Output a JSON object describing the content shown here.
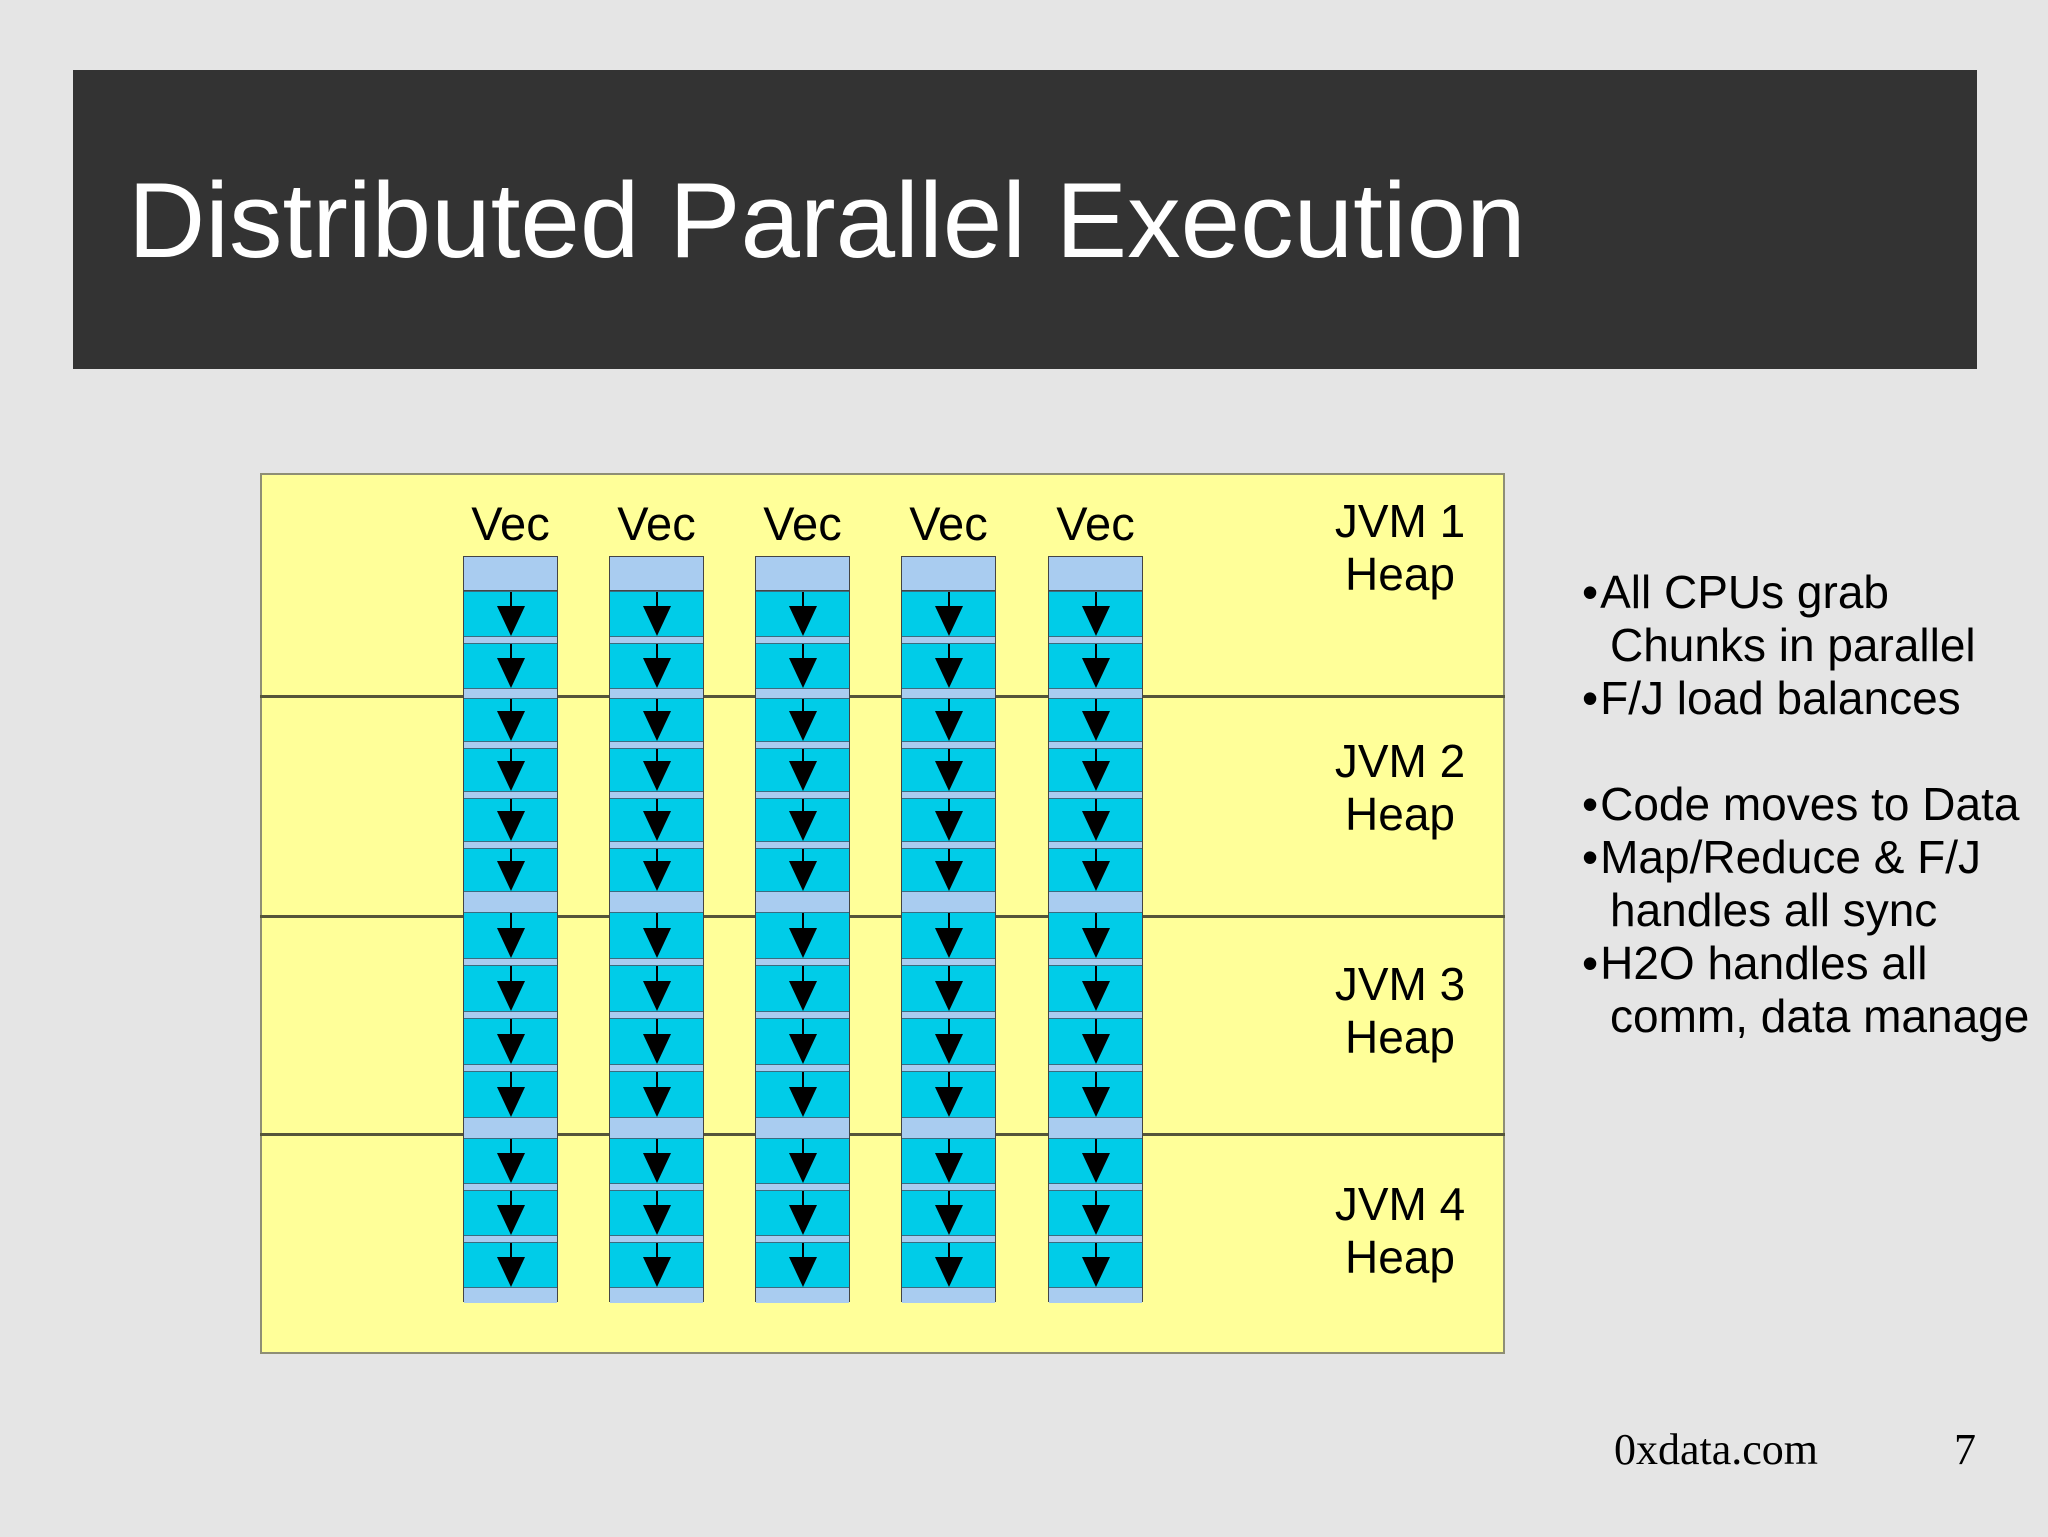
{
  "slide": {
    "title": "Distributed Parallel Execution",
    "footer": {
      "site": "0xdata.com",
      "page_number": "7"
    }
  },
  "diagram": {
    "vec_label": "Vec",
    "vec_column_count": 5,
    "sections": [
      {
        "jvm_line1": "JVM 1",
        "jvm_line2": "Heap",
        "chunks": 2
      },
      {
        "jvm_line1": "JVM 2",
        "jvm_line2": "Heap",
        "chunks": 4
      },
      {
        "jvm_line1": "JVM 3",
        "jvm_line2": "Heap",
        "chunks": 4
      },
      {
        "jvm_line1": "JVM 4",
        "jvm_line2": "Heap",
        "chunks": 3
      }
    ],
    "colors": {
      "bg": "#E5E5E5",
      "banner": "#333333",
      "heap": "#FFFF99",
      "chunk": "#00CCE8",
      "headerblue": "#A9CCF0",
      "sepblue": "#A9CCF0",
      "divider": "#55553A",
      "arrow": "#000000"
    }
  },
  "bullets": {
    "items": [
      {
        "lines": [
          "All CPUs grab",
          "Chunks in parallel"
        ]
      },
      {
        "lines": [
          "F/J load balances"
        ]
      },
      {
        "spacer": true
      },
      {
        "lines": [
          "Code moves to Data"
        ]
      },
      {
        "lines": [
          "Map/Reduce & F/J",
          "handles all sync"
        ]
      },
      {
        "lines": [
          "H2O handles all",
          "comm, data manage"
        ]
      }
    ]
  }
}
